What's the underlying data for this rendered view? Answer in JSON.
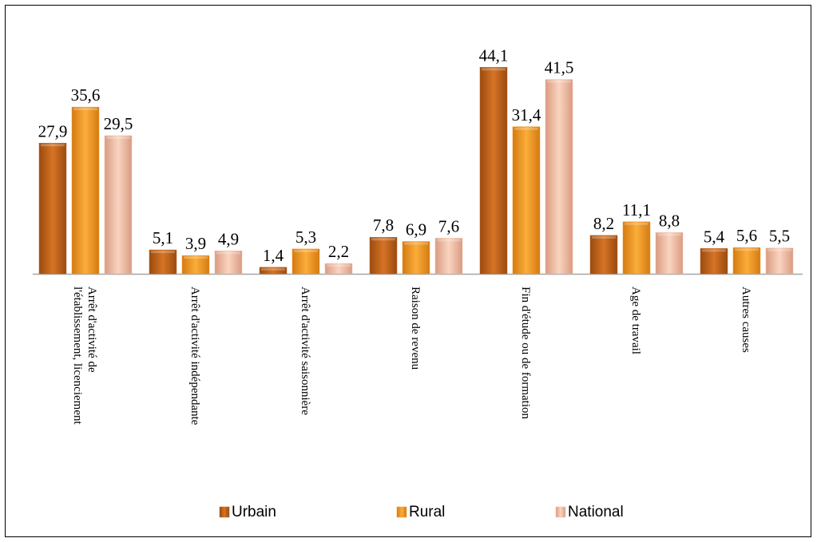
{
  "chart_data": {
    "type": "bar",
    "categories": [
      [
        "Arrêt d'activité de",
        "l'établissement, licenciement"
      ],
      [
        "Arrêt d'activité indépendante"
      ],
      [
        "Arrêt d'activité saisonnière"
      ],
      [
        "Raison de revenu"
      ],
      [
        "Fin d'étude ou de formation"
      ],
      [
        "Age de travail"
      ],
      [
        "Autres causes"
      ]
    ],
    "series": [
      {
        "name": "Urbain",
        "values": [
          27.9,
          5.1,
          1.4,
          7.8,
          44.1,
          8.2,
          5.4
        ],
        "labels": [
          "27,9",
          "5,1",
          "1,4",
          "7,8",
          "44,1",
          "8,2",
          "5,4"
        ],
        "color": "#c7661c"
      },
      {
        "name": "Rural",
        "values": [
          35.6,
          3.9,
          5.3,
          6.9,
          31.4,
          11.1,
          5.6
        ],
        "labels": [
          "35,6",
          "3,9",
          "5,3",
          "6,9",
          "31,4",
          "11,1",
          "5,6"
        ],
        "color": "#f39a21"
      },
      {
        "name": "National",
        "values": [
          29.5,
          4.9,
          2.2,
          7.6,
          41.5,
          8.8,
          5.5
        ],
        "labels": [
          "29,5",
          "4,9",
          "2,2",
          "7,6",
          "41,5",
          "8,8",
          "5,5"
        ],
        "color": "#f2c0a6"
      }
    ],
    "ylim": [
      0,
      45
    ],
    "grid": false,
    "legend_position": "bottom"
  }
}
